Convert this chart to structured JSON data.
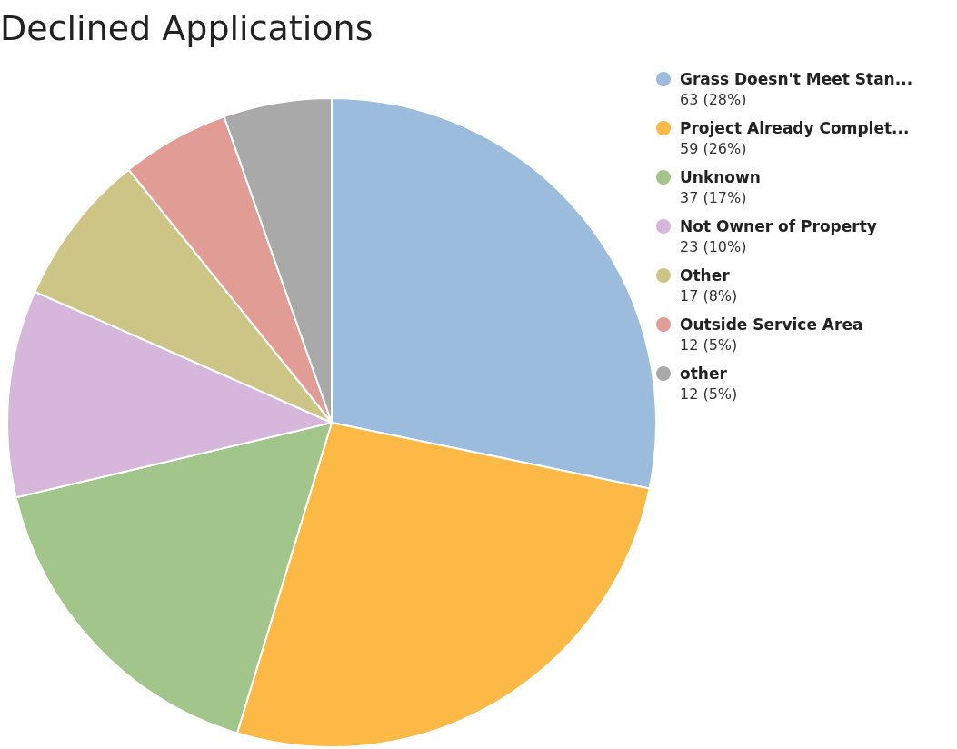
{
  "chart_data": {
    "type": "pie",
    "title": "Declined Applications",
    "categories": [
      "Grass Doesn't Meet Stan...",
      "Project Already Complet...",
      "Unknown",
      "Not Owner of Property",
      "Other",
      "Outside Service Area",
      "other"
    ],
    "values": [
      63,
      59,
      37,
      23,
      17,
      12,
      12
    ],
    "value_labels": [
      "63 (28%)",
      "59 (26%)",
      "37 (17%)",
      "23 (10%)",
      "17 (8%)",
      "12 (5%)",
      "12 (5%)"
    ],
    "colors": [
      "#9bbcdd",
      "#fdb945",
      "#a1c58a",
      "#d7b6db",
      "#cdc586",
      "#e29c96",
      "#a9a9a9"
    ],
    "legend": "top right"
  }
}
